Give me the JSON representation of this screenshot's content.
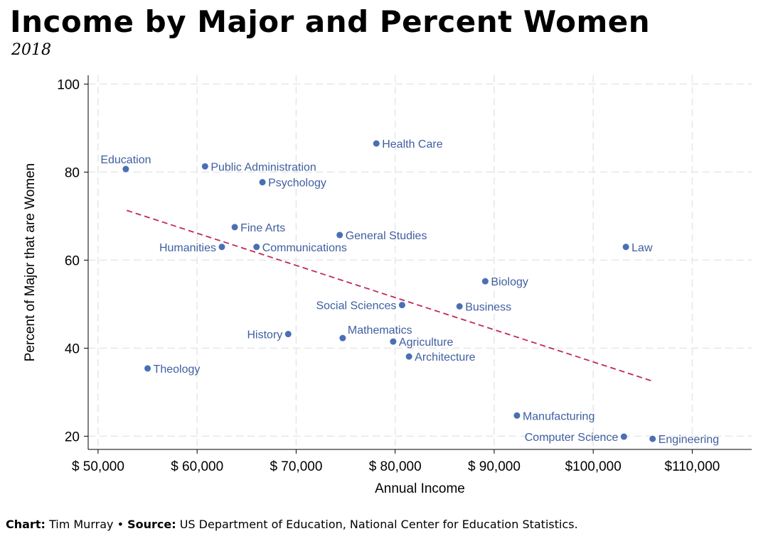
{
  "header": {
    "title": "Income by Major and Percent Women",
    "subtitle": "2018"
  },
  "footer": {
    "chart_label": "Chart:",
    "chart_author": "Tim Murray",
    "separator": "•",
    "source_label": "Source:",
    "source_text": "US Department of Education, National Center for Education Statistics."
  },
  "colors": {
    "points": "#4a6fb5",
    "labels": "#3f5fa0",
    "trend": "#c0285a",
    "grid": "#e6e6e6"
  },
  "chart_data": {
    "type": "scatter",
    "title": "Income by Major and Percent Women",
    "subtitle": "2018",
    "xlabel": "Annual Income",
    "ylabel": "Percent of Major that are Women",
    "xlim": [
      49000,
      116000
    ],
    "ylim": [
      17,
      102
    ],
    "x_ticks": [
      50000,
      60000,
      70000,
      80000,
      90000,
      100000,
      110000
    ],
    "x_tick_labels": [
      "$ 50,000",
      "$ 60,000",
      "$ 70,000",
      "$ 80,000",
      "$ 90,000",
      "$100,000",
      "$110,000"
    ],
    "y_ticks": [
      20,
      40,
      60,
      80,
      100
    ],
    "y_tick_labels": [
      "20",
      "40",
      "60",
      "80",
      "100"
    ],
    "grid": true,
    "trendline": {
      "style": "dashed",
      "x": [
        52900,
        106000
      ],
      "y": [
        71.3,
        32.5
      ]
    },
    "points": [
      {
        "label": "Education",
        "x": 52800,
        "y": 80.7,
        "label_pos": "above"
      },
      {
        "label": "Theology",
        "x": 55000,
        "y": 35.4,
        "label_pos": "right"
      },
      {
        "label": "Public Administration",
        "x": 60800,
        "y": 81.3,
        "label_pos": "right"
      },
      {
        "label": "Humanities",
        "x": 62500,
        "y": 63.0,
        "label_pos": "left"
      },
      {
        "label": "Fine Arts",
        "x": 63800,
        "y": 67.5,
        "label_pos": "right"
      },
      {
        "label": "Communications",
        "x": 66000,
        "y": 63.0,
        "label_pos": "right"
      },
      {
        "label": "Psychology",
        "x": 66600,
        "y": 77.7,
        "label_pos": "right"
      },
      {
        "label": "History",
        "x": 69200,
        "y": 43.2,
        "label_pos": "left"
      },
      {
        "label": "General Studies",
        "x": 74400,
        "y": 65.7,
        "label_pos": "right"
      },
      {
        "label": "Mathematics",
        "x": 74700,
        "y": 42.3,
        "label_pos": "above-right"
      },
      {
        "label": "Health Care",
        "x": 78100,
        "y": 86.5,
        "label_pos": "right"
      },
      {
        "label": "Agriculture",
        "x": 79800,
        "y": 41.5,
        "label_pos": "right"
      },
      {
        "label": "Social Sciences",
        "x": 80700,
        "y": 49.8,
        "label_pos": "left"
      },
      {
        "label": "Architecture",
        "x": 81400,
        "y": 38.1,
        "label_pos": "right"
      },
      {
        "label": "Business",
        "x": 86500,
        "y": 49.5,
        "label_pos": "right"
      },
      {
        "label": "Biology",
        "x": 89100,
        "y": 55.2,
        "label_pos": "right"
      },
      {
        "label": "Manufacturing",
        "x": 92300,
        "y": 24.7,
        "label_pos": "right"
      },
      {
        "label": "Computer Science",
        "x": 103100,
        "y": 19.9,
        "label_pos": "left"
      },
      {
        "label": "Law",
        "x": 103300,
        "y": 63.0,
        "label_pos": "right"
      },
      {
        "label": "Engineering",
        "x": 106000,
        "y": 19.4,
        "label_pos": "right"
      }
    ]
  }
}
